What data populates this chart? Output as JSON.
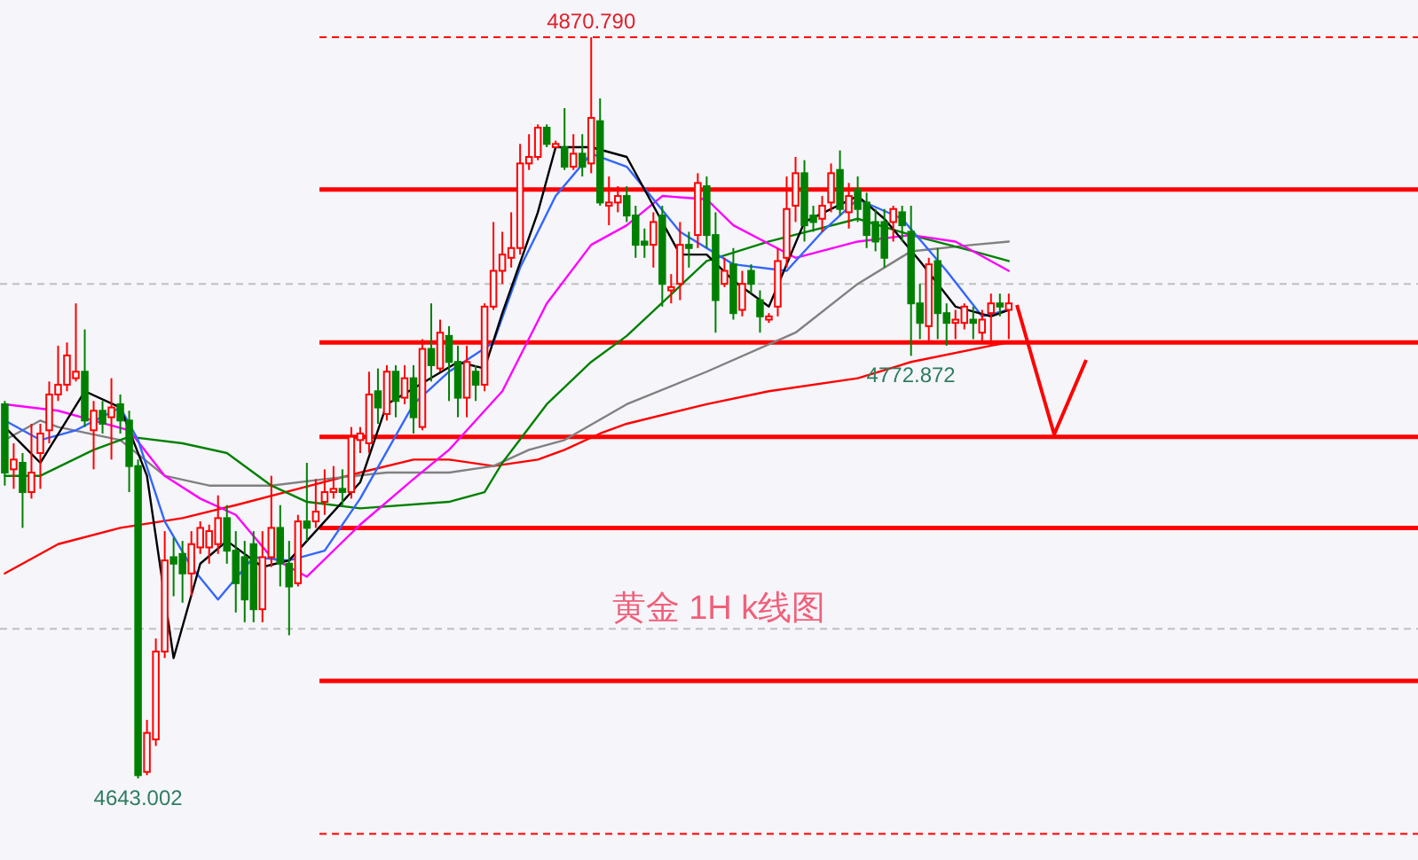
{
  "chart_data": {
    "type": "candlestick",
    "title": "黄金 1H  k线图",
    "categories": [
      null,
      null,
      null,
      null,
      null,
      null,
      null,
      null,
      null,
      null,
      null,
      null,
      null,
      null,
      null,
      null,
      null,
      null,
      null,
      null,
      null,
      null,
      null,
      null,
      null,
      null,
      null,
      null,
      null,
      null,
      null,
      null,
      null,
      null,
      null,
      null,
      null,
      null,
      null,
      null,
      null,
      null,
      null,
      null,
      null,
      null,
      null,
      null,
      null,
      null,
      null,
      null,
      null,
      null,
      null,
      null,
      null,
      null,
      null,
      null,
      null,
      null,
      null,
      null,
      null,
      null,
      null,
      null,
      null,
      null,
      null,
      null,
      null,
      null,
      null,
      null,
      null,
      null,
      null,
      null,
      null,
      null,
      null,
      null,
      null,
      null,
      null,
      null,
      null,
      null,
      null,
      null,
      null,
      null,
      null,
      null,
      null,
      null,
      null,
      null,
      null,
      null,
      null,
      null,
      null,
      null,
      null,
      null,
      null,
      null,
      null,
      null,
      null,
      null
    ],
    "ohlc": [
      [
        4758,
        4759,
        4733,
        4737
      ],
      [
        4738,
        4746,
        4732,
        4741
      ],
      [
        4740,
        4743,
        4720,
        4731
      ],
      [
        4731,
        4752,
        4729,
        4737
      ],
      [
        4743,
        4752,
        4732,
        4749
      ],
      [
        4750,
        4765,
        4746,
        4761
      ],
      [
        4761,
        4776,
        4759,
        4764
      ],
      [
        4764,
        4777,
        4762,
        4773
      ],
      [
        4766,
        4789,
        4765,
        4768
      ],
      [
        4768,
        4781,
        4751,
        4753
      ],
      [
        4750,
        4759,
        4738,
        4756
      ],
      [
        4756,
        4759,
        4749,
        4752
      ],
      [
        4754,
        4766,
        4741,
        4757
      ],
      [
        4758,
        4761,
        4749,
        4753
      ],
      [
        4753,
        4756,
        4731,
        4739
      ],
      [
        4739,
        4741,
        4643.002,
        4644
      ],
      [
        4645,
        4661,
        4644,
        4657
      ],
      [
        4655,
        4686,
        4653,
        4682
      ],
      [
        4682,
        4719,
        4680,
        4710
      ],
      [
        4711,
        4717,
        4699,
        4709
      ],
      [
        4712,
        4716,
        4697,
        4706
      ],
      [
        4706,
        4719,
        4699,
        4715
      ],
      [
        4714,
        4722,
        4712,
        4720
      ],
      [
        4714,
        4721,
        4709,
        4719
      ],
      [
        4715,
        4730,
        4712,
        4723
      ],
      [
        4723,
        4727,
        4709,
        4713
      ],
      [
        4713,
        4719,
        4694,
        4703
      ],
      [
        4711,
        4716,
        4691,
        4698
      ],
      [
        4715,
        4719,
        4691,
        4695
      ],
      [
        4695,
        4719,
        4691,
        4711
      ],
      [
        4711,
        4736,
        4708,
        4720
      ],
      [
        4720,
        4727,
        4702,
        4709
      ],
      [
        4709,
        4716,
        4687,
        4702
      ],
      [
        4703,
        4724,
        4702,
        4722
      ],
      [
        4722,
        4740,
        4716,
        4720
      ],
      [
        4722,
        4735,
        4720,
        4725
      ],
      [
        4728,
        4738,
        4724,
        4731
      ],
      [
        4731,
        4739,
        4729,
        4732
      ],
      [
        4732,
        4738,
        4727,
        4731
      ],
      [
        4731,
        4751,
        4729,
        4748
      ],
      [
        4747,
        4751,
        4743,
        4749
      ],
      [
        4746,
        4768,
        4743,
        4761
      ],
      [
        4762,
        4769,
        4752,
        4757
      ],
      [
        4755,
        4770,
        4753,
        4768
      ],
      [
        4768,
        4770,
        4754,
        4759
      ],
      [
        4760,
        4770,
        4758,
        4766
      ],
      [
        4766,
        4770,
        4749,
        4754
      ],
      [
        4751,
        4778,
        4750,
        4775
      ],
      [
        4775,
        4789,
        4765,
        4770
      ],
      [
        4769,
        4784,
        4768,
        4780
      ],
      [
        4779,
        4782,
        4759,
        4771
      ],
      [
        4771,
        4776,
        4754,
        4760
      ],
      [
        4760,
        4776,
        4754,
        4771
      ],
      [
        4768,
        4770,
        4759,
        4764
      ],
      [
        4764,
        4789,
        4762,
        4788
      ],
      [
        4788,
        4814,
        4787,
        4799
      ],
      [
        4799,
        4811,
        4795,
        4804
      ],
      [
        4803,
        4817,
        4800,
        4806
      ],
      [
        4806,
        4838,
        4804,
        4832
      ],
      [
        4832,
        4841,
        4830,
        4834
      ],
      [
        4834,
        4844,
        4833,
        4843
      ],
      [
        4843,
        4844,
        4837,
        4838
      ],
      [
        4837,
        4839,
        4837,
        4838
      ],
      [
        4837,
        4849,
        4830,
        4831
      ],
      [
        4831,
        4841,
        4830,
        4835
      ],
      [
        4835,
        4841,
        4828,
        4831
      ],
      [
        4832,
        4870.79,
        4829,
        4846
      ],
      [
        4845,
        4852,
        4819,
        4820
      ],
      [
        4819,
        4828,
        4813,
        4820
      ],
      [
        4820,
        4825,
        4817,
        4822
      ],
      [
        4822,
        4825,
        4814,
        4816
      ],
      [
        4816,
        4819,
        4803,
        4807
      ],
      [
        4808,
        4812,
        4803,
        4807
      ],
      [
        4807,
        4817,
        4800,
        4814
      ],
      [
        4816,
        4819,
        4788,
        4795
      ],
      [
        4793,
        4798,
        4789,
        4794
      ],
      [
        4795,
        4814,
        4790,
        4807
      ],
      [
        4807,
        4811,
        4800,
        4806
      ],
      [
        4810,
        4829,
        4806,
        4826
      ],
      [
        4825,
        4828,
        4806,
        4810
      ],
      [
        4810,
        4817,
        4780,
        4790
      ],
      [
        4795,
        4803,
        4794,
        4799
      ],
      [
        4801,
        4806,
        4784,
        4786
      ],
      [
        4787,
        4799,
        4785,
        4795
      ],
      [
        4799,
        4801,
        4792,
        4795
      ],
      [
        4790,
        4793,
        4780,
        4785
      ],
      [
        4784,
        4786,
        4783,
        4785
      ],
      [
        4788,
        4806,
        4785,
        4802
      ],
      [
        4803,
        4828,
        4800,
        4818
      ],
      [
        4819,
        4834,
        4814,
        4829
      ],
      [
        4829,
        4833,
        4808,
        4813
      ],
      [
        4816,
        4819,
        4811,
        4814
      ],
      [
        4815,
        4822,
        4811,
        4819
      ],
      [
        4820,
        4832,
        4817,
        4829
      ],
      [
        4830,
        4836,
        4816,
        4818
      ],
      [
        4817,
        4826,
        4812,
        4822
      ],
      [
        4824,
        4828,
        4814,
        4818
      ],
      [
        4820,
        4823,
        4806,
        4810
      ],
      [
        4814,
        4818,
        4805,
        4808
      ],
      [
        4814,
        4818,
        4800,
        4803
      ],
      [
        4814,
        4819,
        4808,
        4818
      ],
      [
        4817,
        4819,
        4808,
        4813
      ],
      [
        4811,
        4819,
        4772.872,
        4789
      ],
      [
        4789,
        4795,
        4778,
        4783
      ],
      [
        4782,
        4803,
        4777,
        4801
      ],
      [
        4802,
        4806,
        4778,
        4786
      ],
      [
        4786,
        4789,
        4776,
        4783
      ],
      [
        4783,
        4787,
        4778,
        4784
      ],
      [
        4783,
        4789,
        4781,
        4788
      ],
      [
        4784,
        4788,
        4778,
        4783
      ],
      [
        4780,
        4787,
        4777,
        4784
      ],
      [
        4786,
        4792,
        4776,
        4789
      ],
      [
        4789,
        4792,
        4785,
        4788
      ],
      [
        4787,
        4792,
        4778,
        4789
      ]
    ],
    "series": [
      {
        "type": "line",
        "color": "#ff0000",
        "values": [
          4706,
          null,
          null,
          null,
          null,
          null,
          4715,
          null,
          null,
          null,
          null,
          null,
          null,
          4720,
          null,
          null,
          null,
          null,
          null,
          null,
          4723,
          null,
          null,
          null,
          null,
          null,
          4727,
          null,
          null,
          null,
          null,
          null,
          null,
          4732,
          null,
          null,
          null,
          null,
          null,
          null,
          4737,
          null,
          null,
          null,
          null,
          null,
          4741,
          null,
          null,
          null,
          4741,
          null,
          null,
          null,
          null,
          4739,
          null,
          null,
          null,
          null,
          4741,
          null,
          null,
          4744,
          null,
          null,
          null,
          4749,
          null,
          null,
          4752,
          null,
          null,
          null,
          null,
          null,
          null,
          null,
          null,
          4758,
          null,
          null,
          null,
          null,
          null,
          null,
          4762,
          null,
          null,
          null,
          null,
          null,
          null,
          null,
          null,
          null,
          4766,
          null,
          null,
          null,
          null,
          null,
          4771,
          null,
          null,
          null,
          null,
          null,
          null,
          null,
          null,
          4776,
          null,
          4777
        ]
      },
      {
        "type": "line",
        "color": "#808080",
        "values": [
          4747,
          null,
          null,
          null,
          4753,
          null,
          4751,
          null,
          null,
          null,
          null,
          null,
          null,
          4747,
          null,
          null,
          null,
          null,
          4736,
          null,
          null,
          null,
          null,
          4733,
          null,
          null,
          null,
          null,
          null,
          null,
          4733,
          null,
          null,
          null,
          null,
          null,
          4735,
          null,
          null,
          null,
          null,
          null,
          null,
          4737,
          null,
          null,
          null,
          null,
          null,
          null,
          4737,
          null,
          null,
          null,
          null,
          4739,
          null,
          null,
          null,
          4744,
          null,
          null,
          null,
          4747,
          null,
          null,
          null,
          null,
          null,
          null,
          4758,
          null,
          null,
          null,
          null,
          null,
          null,
          null,
          null,
          4768,
          null,
          null,
          null,
          null,
          null,
          null,
          null,
          null,
          null,
          4780,
          null,
          null,
          null,
          null,
          null,
          null,
          4795,
          null,
          null,
          null,
          null,
          null,
          4805,
          null,
          null,
          null,
          null,
          null,
          null,
          4807,
          null,
          null,
          null,
          4808
        ]
      },
      {
        "type": "line",
        "color": "#008000",
        "values": [
          4736,
          null,
          null,
          null,
          4736,
          null,
          null,
          null,
          null,
          null,
          4744,
          null,
          null,
          null,
          4748,
          null,
          null,
          null,
          null,
          null,
          4746,
          null,
          null,
          null,
          null,
          4743,
          null,
          null,
          null,
          null,
          4733,
          null,
          null,
          null,
          4728,
          null,
          null,
          null,
          null,
          null,
          4726,
          null,
          null,
          null,
          null,
          null,
          null,
          null,
          null,
          null,
          4728,
          null,
          null,
          null,
          4731,
          null,
          4740,
          null,
          null,
          null,
          null,
          4758,
          null,
          null,
          null,
          null,
          4771,
          null,
          null,
          null,
          4779,
          null,
          null,
          null,
          null,
          null,
          null,
          null,
          null,
          4802,
          null,
          null,
          null,
          null,
          null,
          null,
          4808,
          null,
          null,
          null,
          null,
          null,
          null,
          null,
          null,
          null,
          4815,
          null,
          null,
          null,
          null,
          null,
          4810,
          null,
          null,
          null,
          null,
          null,
          null,
          4805,
          null,
          null,
          null,
          4802
        ]
      },
      {
        "type": "line",
        "color": "#ff00ff",
        "values": [
          4758,
          null,
          null,
          null,
          null,
          null,
          4756,
          null,
          null,
          null,
          4753,
          null,
          null,
          null,
          4750,
          null,
          null,
          null,
          4736,
          null,
          null,
          null,
          4729,
          null,
          null,
          null,
          4724,
          null,
          null,
          null,
          4711,
          null,
          null,
          null,
          4705,
          null,
          null,
          null,
          null,
          null,
          4721,
          null,
          null,
          null,
          null,
          null,
          4735,
          null,
          null,
          null,
          4744,
          null,
          null,
          null,
          null,
          null,
          4762,
          null,
          null,
          null,
          null,
          4789,
          null,
          null,
          null,
          null,
          4807,
          null,
          null,
          null,
          4813,
          null,
          null,
          null,
          4822,
          null,
          null,
          null,
          null,
          4821,
          null,
          null,
          4813,
          null,
          null,
          null,
          null,
          null,
          null,
          4803,
          null,
          null,
          null,
          null,
          null,
          null,
          4808,
          null,
          null,
          null,
          null,
          null,
          4810,
          null,
          null,
          null,
          null,
          4808,
          null,
          null,
          null,
          null,
          null,
          4799
        ]
      },
      {
        "type": "line",
        "color": "#3366ff",
        "values": [
          4753,
          null,
          null,
          null,
          4747,
          null,
          null,
          null,
          4750,
          null,
          null,
          null,
          null,
          4757,
          null,
          4747,
          null,
          null,
          4722,
          null,
          null,
          4708,
          null,
          null,
          4698,
          null,
          null,
          null,
          4711,
          null,
          null,
          null,
          4710,
          null,
          null,
          null,
          4713,
          null,
          null,
          null,
          4729,
          null,
          null,
          null,
          null,
          null,
          4758,
          null,
          null,
          null,
          4768,
          null,
          null,
          null,
          null,
          4777,
          null,
          null,
          4800,
          null,
          null,
          null,
          4822,
          null,
          null,
          null,
          4835,
          null,
          null,
          null,
          4831,
          null,
          null,
          null,
          null,
          null,
          4811,
          null,
          null,
          null,
          null,
          null,
          4801,
          null,
          null,
          null,
          null,
          null,
          4799,
          null,
          null,
          null,
          4811,
          null,
          null,
          null,
          4821,
          null,
          null,
          null,
          null,
          4815,
          null,
          null,
          null,
          null,
          4799,
          null,
          null,
          null,
          4785,
          null,
          null,
          4787
        ]
      },
      {
        "type": "line",
        "color": "#000000",
        "values": [
          4751,
          null,
          null,
          null,
          4740,
          null,
          null,
          null,
          null,
          4762,
          null,
          null,
          null,
          4757,
          null,
          null,
          4736,
          null,
          null,
          4680,
          null,
          null,
          4709,
          null,
          null,
          4716,
          null,
          null,
          null,
          4708,
          null,
          null,
          4710,
          null,
          null,
          null,
          4722,
          null,
          null,
          null,
          4734,
          null,
          null,
          4758,
          null,
          null,
          null,
          null,
          null,
          null,
          null,
          4771,
          null,
          null,
          4769,
          null,
          4786,
          null,
          null,
          null,
          4817,
          null,
          4837,
          null,
          null,
          null,
          4837,
          null,
          null,
          null,
          4834,
          null,
          4824,
          null,
          null,
          null,
          4804,
          null,
          null,
          4804,
          null,
          null,
          4796,
          null,
          null,
          null,
          4788,
          null,
          null,
          null,
          4814,
          null,
          null,
          null,
          null,
          null,
          4822,
          null,
          null,
          4815,
          null,
          null,
          null,
          4802,
          null,
          null,
          null,
          4788,
          null,
          null,
          null,
          4785,
          null,
          4787
        ]
      }
    ],
    "ref_lines": [
      {
        "axis": "y",
        "value": 4870.79,
        "color": "#ff0000",
        "line_style": "dashed"
      },
      {
        "axis": "y",
        "value": 4824,
        "color": "#ff0000",
        "line_style": "solid"
      },
      {
        "axis": "y",
        "value": 4795,
        "color": "#c0c0c0",
        "line_style": "dashed"
      },
      {
        "axis": "y",
        "value": 4777,
        "color": "#ff0000",
        "line_style": "solid"
      },
      {
        "axis": "y",
        "value": 4748,
        "color": "#ff0000",
        "line_style": "solid"
      },
      {
        "axis": "y",
        "value": 4720,
        "color": "#ff0000",
        "line_style": "solid"
      },
      {
        "axis": "y",
        "value": 4689,
        "color": "#c0c0c0",
        "line_style": "dashed"
      },
      {
        "axis": "y",
        "value": 4673,
        "color": "#ff0000",
        "line_style": "solid"
      },
      {
        "axis": "y",
        "value": 4626,
        "color": "#ff0000",
        "line_style": "dashed"
      }
    ],
    "annotations": [
      {
        "text": "4870.790",
        "y": 4870.79
      },
      {
        "text": "4772.872",
        "y": 4772.872
      },
      {
        "text": "4643.002",
        "y": 4643.002
      }
    ]
  }
}
